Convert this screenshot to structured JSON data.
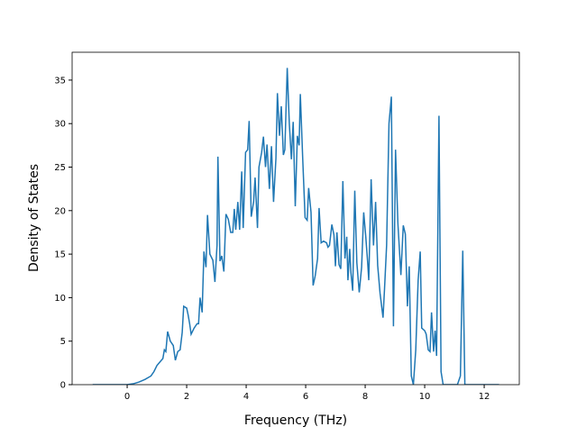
{
  "chart_data": {
    "type": "line",
    "xlabel": "Frequency (THz)",
    "ylabel": "Density of States",
    "xlim": [
      -1.85,
      13.18
    ],
    "ylim": [
      0,
      38.2
    ],
    "xticks": [
      0,
      2,
      4,
      6,
      8,
      10,
      12
    ],
    "yticks": [
      0,
      5,
      10,
      15,
      20,
      25,
      30,
      35
    ],
    "series": [
      {
        "color": "#1f77b4",
        "x": [
          -1.16,
          0,
          0.2,
          0.4,
          0.6,
          0.8,
          0.9,
          1.0,
          1.1,
          1.2,
          1.25,
          1.3,
          1.36,
          1.45,
          1.55,
          1.62,
          1.7,
          1.78,
          1.85,
          1.9,
          2.0,
          2.05,
          2.1,
          2.15,
          2.25,
          2.35,
          2.4,
          2.45,
          2.52,
          2.58,
          2.65,
          2.7,
          2.78,
          2.88,
          2.95,
          3.02,
          3.05,
          3.12,
          3.18,
          3.25,
          3.32,
          3.4,
          3.48,
          3.55,
          3.6,
          3.65,
          3.72,
          3.78,
          3.85,
          3.9,
          3.98,
          4.05,
          4.1,
          4.17,
          4.25,
          4.3,
          4.38,
          4.43,
          4.52,
          4.58,
          4.65,
          4.7,
          4.78,
          4.85,
          4.92,
          5.0,
          5.05,
          5.12,
          5.18,
          5.25,
          5.3,
          5.38,
          5.45,
          5.52,
          5.58,
          5.65,
          5.72,
          5.78,
          5.82,
          5.9,
          5.98,
          6.05,
          6.1,
          6.18,
          6.25,
          6.32,
          6.4,
          6.45,
          6.52,
          6.6,
          6.7,
          6.75,
          6.8,
          6.88,
          6.95,
          7.0,
          7.05,
          7.12,
          7.18,
          7.25,
          7.32,
          7.38,
          7.42,
          7.48,
          7.52,
          7.58,
          7.65,
          7.72,
          7.8,
          7.88,
          7.95,
          8.02,
          8.08,
          8.12,
          8.2,
          8.28,
          8.35,
          8.42,
          8.5,
          8.6,
          8.65,
          8.72,
          8.8,
          8.88,
          8.95,
          9.02,
          9.1,
          9.2,
          9.28,
          9.35,
          9.42,
          9.48,
          9.55,
          9.62,
          9.7,
          9.78,
          9.85,
          9.9,
          10.0,
          10.05,
          10.12,
          10.18,
          10.23,
          10.3,
          10.35,
          10.4,
          10.48,
          10.55,
          10.62,
          11.1,
          11.2,
          11.28,
          11.35,
          12.5
        ],
        "values": [
          0,
          0,
          0.1,
          0.3,
          0.6,
          1.0,
          1.5,
          2.2,
          2.6,
          3.0,
          4.0,
          3.8,
          6.1,
          5.0,
          4.5,
          2.8,
          3.8,
          4.0,
          6,
          9.0,
          8.8,
          8,
          7,
          5.8,
          6.5,
          7.0,
          7.0,
          10.0,
          8.3,
          15.3,
          13.5,
          19.5,
          15,
          14.3,
          11.8,
          16,
          26.2,
          14.2,
          14.8,
          13.0,
          19.6,
          19,
          17.5,
          17.5,
          20.2,
          17.8,
          21,
          17.8,
          24.5,
          18,
          26.7,
          27,
          30.3,
          19.3,
          21,
          23.8,
          18,
          25,
          26.7,
          28.5,
          25,
          27.6,
          22.5,
          27.4,
          21,
          26,
          33.5,
          28.6,
          32,
          26.4,
          27,
          36.4,
          30,
          25.9,
          30.2,
          20.5,
          28.6,
          27.5,
          33.4,
          26,
          19.2,
          18.9,
          22.6,
          19.8,
          11.4,
          12.5,
          14.5,
          20.3,
          16.3,
          16.5,
          16.3,
          15.8,
          16,
          18.4,
          17.2,
          13.6,
          17.5,
          13.8,
          13.3,
          23.4,
          14.5,
          17,
          12.0,
          15.6,
          12.9,
          10.8,
          22.3,
          14,
          10.6,
          13.5,
          19.8,
          17,
          14.2,
          12,
          23.6,
          16,
          21,
          13.7,
          10.5,
          7.7,
          11,
          16,
          30.0,
          33.1,
          6.7,
          27,
          18.5,
          12.6,
          18.3,
          17.3,
          9,
          13.6,
          1.0,
          0,
          4,
          12,
          15.3,
          6.5,
          6.2,
          5.8,
          4,
          3.8,
          8.3,
          3.8,
          6.2,
          3.3,
          30.9,
          1.5,
          0,
          0,
          1.0,
          15.4,
          0,
          0
        ]
      }
    ]
  }
}
